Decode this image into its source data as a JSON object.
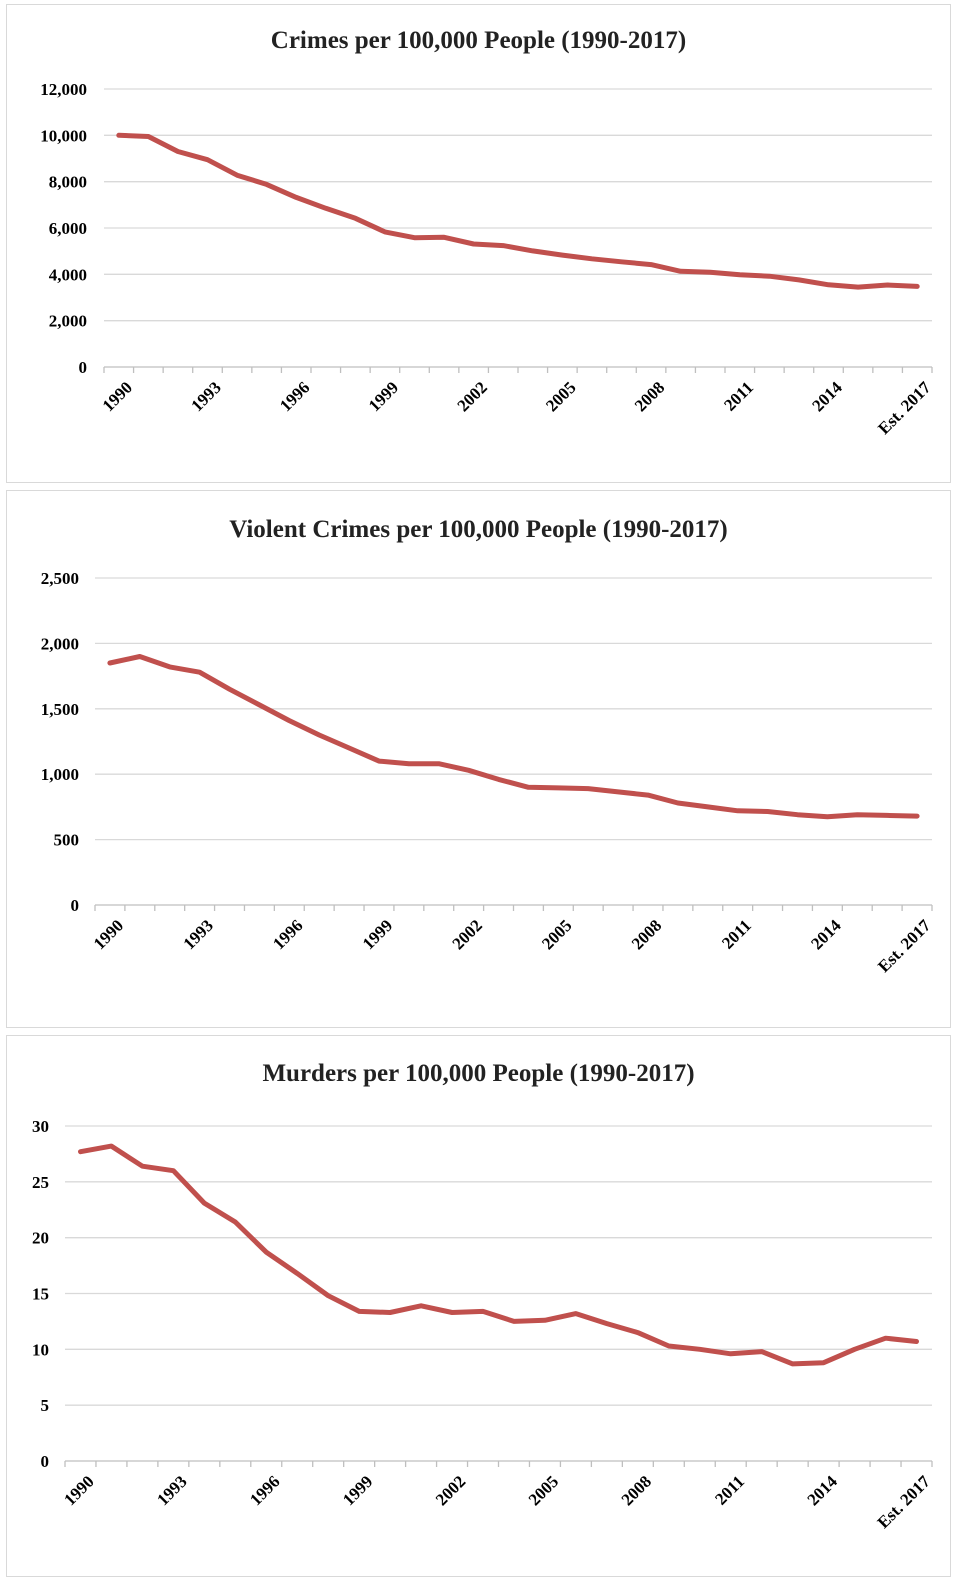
{
  "chart_data": [
    {
      "type": "line",
      "title": "Crimes per 100,000 People (1990-2017)",
      "xlabel": "",
      "ylabel": "",
      "ylim": [
        0,
        12000
      ],
      "yticks": [
        "0",
        "2,000",
        "4,000",
        "6,000",
        "8,000",
        "10,000",
        "12,000"
      ],
      "x": [
        "1990",
        "1991",
        "1992",
        "1993",
        "1994",
        "1995",
        "1996",
        "1997",
        "1998",
        "1999",
        "2000",
        "2001",
        "2002",
        "2003",
        "2004",
        "2005",
        "2006",
        "2007",
        "2008",
        "2009",
        "2010",
        "2011",
        "2012",
        "2013",
        "2014",
        "2015",
        "2016",
        "Est. 2017"
      ],
      "xtick_labels": [
        "1990",
        "1993",
        "1996",
        "1999",
        "2002",
        "2005",
        "2008",
        "2011",
        "2014",
        "Est. 2017"
      ],
      "series": [
        {
          "values": [
            10000,
            9950,
            9300,
            8950,
            8280,
            7880,
            7320,
            6850,
            6420,
            5830,
            5580,
            5600,
            5310,
            5240,
            5010,
            4830,
            4670,
            4540,
            4420,
            4130,
            4090,
            3980,
            3920,
            3760,
            3550,
            3450,
            3540,
            3480
          ]
        }
      ],
      "line_color": "#c0504d",
      "grid": true,
      "legend": "none"
    },
    {
      "type": "line",
      "title": "Violent Crimes per 100,000 People (1990-2017)",
      "xlabel": "",
      "ylabel": "",
      "ylim": [
        0,
        2500
      ],
      "yticks": [
        "0",
        "500",
        "1,000",
        "1,500",
        "2,000",
        "2,500"
      ],
      "x": [
        "1990",
        "1991",
        "1992",
        "1993",
        "1994",
        "1995",
        "1996",
        "1997",
        "1998",
        "1999",
        "2000",
        "2001",
        "2002",
        "2003",
        "2004",
        "2005",
        "2006",
        "2007",
        "2008",
        "2009",
        "2010",
        "2011",
        "2012",
        "2013",
        "2014",
        "2015",
        "2016",
        "Est. 2017"
      ],
      "xtick_labels": [
        "1990",
        "1993",
        "1996",
        "1999",
        "2002",
        "2005",
        "2008",
        "2011",
        "2014",
        "Est. 2017"
      ],
      "series": [
        {
          "values": [
            1850,
            1900,
            1820,
            1780,
            1650,
            1530,
            1410,
            1300,
            1200,
            1100,
            1080,
            1080,
            1030,
            960,
            900,
            895,
            890,
            865,
            840,
            780,
            750,
            720,
            715,
            690,
            675,
            690,
            685,
            680
          ]
        }
      ],
      "line_color": "#c0504d",
      "grid": true,
      "legend": "none"
    },
    {
      "type": "line",
      "title": "Murders per 100,000 People (1990-2017)",
      "xlabel": "",
      "ylabel": "",
      "ylim": [
        0,
        30
      ],
      "yticks": [
        "0",
        "5",
        "10",
        "15",
        "20",
        "25",
        "30"
      ],
      "x": [
        "1990",
        "1991",
        "1992",
        "1993",
        "1994",
        "1995",
        "1996",
        "1997",
        "1998",
        "1999",
        "2000",
        "2001",
        "2002",
        "2003",
        "2004",
        "2005",
        "2006",
        "2007",
        "2008",
        "2009",
        "2010",
        "2011",
        "2012",
        "2013",
        "2014",
        "2015",
        "2016",
        "Est. 2017"
      ],
      "xtick_labels": [
        "1990",
        "1993",
        "1996",
        "1999",
        "2002",
        "2005",
        "2008",
        "2011",
        "2014",
        "Est. 2017"
      ],
      "series": [
        {
          "values": [
            27.7,
            28.2,
            26.4,
            26.0,
            23.1,
            21.4,
            18.7,
            16.8,
            14.8,
            13.4,
            13.3,
            13.9,
            13.3,
            13.4,
            12.5,
            12.6,
            13.2,
            12.3,
            11.5,
            10.3,
            10.0,
            9.6,
            9.8,
            8.7,
            8.8,
            10.0,
            11.0,
            10.7
          ]
        }
      ],
      "line_color": "#c0504d",
      "grid": true,
      "legend": "none"
    }
  ]
}
